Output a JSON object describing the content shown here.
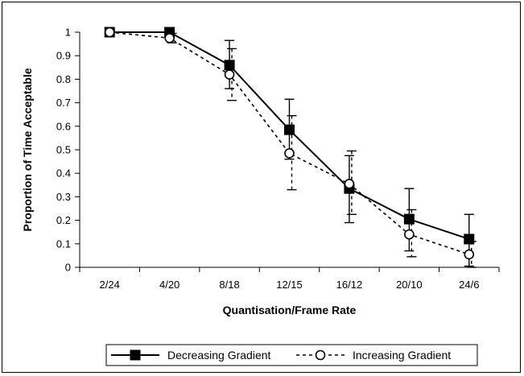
{
  "chart_data": {
    "type": "line",
    "title": "",
    "xlabel": "Quantisation/Frame Rate",
    "ylabel": "Proportion of Time Acceptable",
    "categories": [
      "2/24",
      "4/20",
      "8/18",
      "12/15",
      "16/12",
      "20/10",
      "24/6"
    ],
    "ylim": [
      0,
      1
    ],
    "yticks": [
      0,
      0.1,
      0.2,
      0.3,
      0.4,
      0.5,
      0.6,
      0.7,
      0.8,
      0.9,
      1
    ],
    "ytick_labels": [
      "0",
      "0.1",
      "0.2",
      "0.3",
      "0.4",
      "0.5",
      "0.6",
      "0.7",
      "0.8",
      "0.9",
      "1"
    ],
    "grid": false,
    "legend_position": "bottom",
    "series": [
      {
        "name": "Decreasing Gradient",
        "values": [
          1.0,
          1.0,
          0.86,
          0.585,
          0.335,
          0.205,
          0.12
        ],
        "error_low": [
          1.0,
          1.0,
          0.76,
          0.46,
          0.19,
          0.07,
          0.005
        ],
        "error_high": [
          1.0,
          1.0,
          0.965,
          0.715,
          0.475,
          0.335,
          0.225
        ],
        "line_style": "solid",
        "marker": "filled-square",
        "color": "#000000"
      },
      {
        "name": "Increasing Gradient",
        "values": [
          1.0,
          0.975,
          0.82,
          0.485,
          0.355,
          0.14,
          0.055
        ],
        "error_low": [
          1.0,
          0.955,
          0.71,
          0.33,
          0.225,
          0.045,
          0.0
        ],
        "error_high": [
          1.0,
          0.995,
          0.93,
          0.645,
          0.495,
          0.245,
          0.11
        ],
        "line_style": "dashed",
        "marker": "open-circle",
        "color": "#000000"
      }
    ]
  }
}
